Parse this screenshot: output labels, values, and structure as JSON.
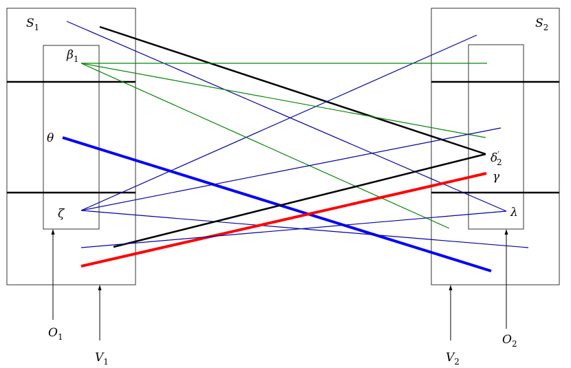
{
  "labels": [
    {
      "main": "S",
      "sub": "1"
    },
    {
      "main": "S",
      "sub": "2"
    },
    {
      "main": "β",
      "sub": "1"
    },
    {
      "main": "θ"
    },
    {
      "main": "ζ"
    },
    {
      "main": "δ",
      "sup": "′",
      "sub": "2"
    },
    {
      "main": "γ"
    },
    {
      "main": "λ"
    },
    {
      "main": "O",
      "sub": "1"
    },
    {
      "main": "V",
      "sub": "1"
    },
    {
      "main": "V",
      "sub": "2"
    },
    {
      "main": "O",
      "sub": "2"
    }
  ]
}
